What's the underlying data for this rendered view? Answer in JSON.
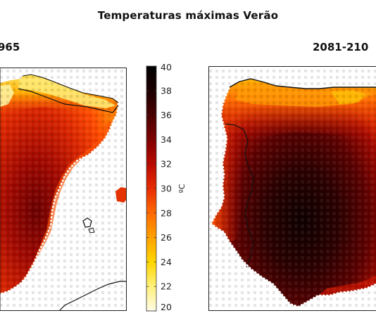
{
  "title": "Temperaturas máximas Verão",
  "panels": [
    {
      "id": "left",
      "label": "965"
    },
    {
      "id": "right",
      "label": "2081-210"
    }
  ],
  "colorbar": {
    "unit": "ºC",
    "min": 20,
    "max": 40,
    "ticks": [
      20,
      22,
      24,
      26,
      28,
      30,
      32,
      34,
      36,
      38,
      40
    ],
    "colors": [
      "#fffbe8",
      "#fff07a",
      "#ffd600",
      "#ffa100",
      "#ff6a00",
      "#e82b00",
      "#b80a00",
      "#7e0000",
      "#4a0000",
      "#1c0000",
      "#000000"
    ]
  }
}
